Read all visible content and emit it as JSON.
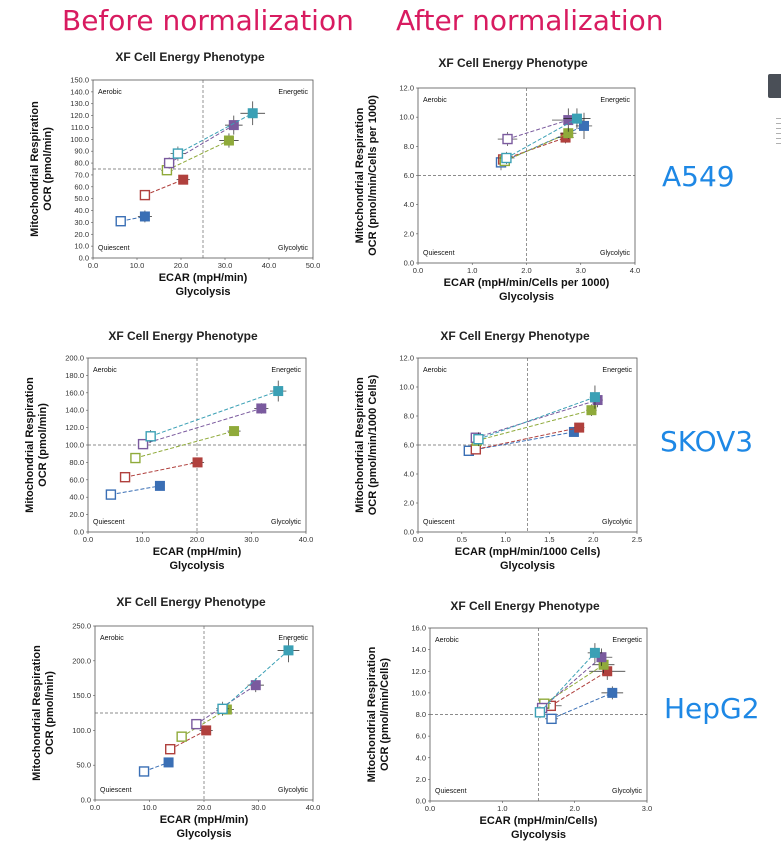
{
  "headings": {
    "before": "Before normalization",
    "after": "After normalization"
  },
  "cell_lines": [
    "A549",
    "SKOV3",
    "HepG2"
  ],
  "quadrants": {
    "aerobic": "Aerobic",
    "energetic": "Energetic",
    "quiescent": "Quiescent",
    "glycolytic": "Glycolytic"
  },
  "colors": {
    "blue": "#3a6fb5",
    "red": "#b0403d",
    "green": "#8faa3a",
    "purple": "#7a5a9e",
    "teal": "#3ba0b5"
  },
  "chart_data": [
    {
      "type": "scatter",
      "panel": "A549-before",
      "title": "XF Cell Energy Phenotype",
      "xlabel": "ECAR (mpH/min)",
      "xlabel2": "Glycolysis",
      "ylabel": "OCR (pmol/min)",
      "ylabel2": "Mitochondrial Respiration",
      "xlim": [
        0,
        50
      ],
      "ylim": [
        0,
        150
      ],
      "xticks": [
        "0.0",
        "10.0",
        "20.0",
        "30.0",
        "40.0",
        "50.0"
      ],
      "yticks": [
        "0.0",
        "10.0",
        "20.0",
        "30.0",
        "40.0",
        "50.0",
        "60.0",
        "70.0",
        "80.0",
        "90.0",
        "100.0",
        "110.0",
        "120.0",
        "130.0",
        "140.0",
        "150.0"
      ],
      "divider": [
        25,
        75
      ],
      "series": [
        {
          "color": "blue",
          "open": [
            6.3,
            31
          ],
          "filled": [
            11.8,
            35
          ],
          "ex": 1.6,
          "ey": 5
        },
        {
          "color": "red",
          "open": [
            11.8,
            53
          ],
          "filled": [
            20.5,
            66
          ],
          "ex": 1.5,
          "ey": 4
        },
        {
          "color": "green",
          "open": [
            16.8,
            74
          ],
          "filled": [
            30.9,
            99
          ],
          "ex": 2.2,
          "ey": 6
        },
        {
          "color": "purple",
          "open": [
            17.3,
            80
          ],
          "filled": [
            32.0,
            112
          ],
          "ex": 2.0,
          "ey": 8
        },
        {
          "color": "teal",
          "open": [
            19.3,
            88
          ],
          "filled": [
            36.3,
            122
          ],
          "ex": 2.8,
          "ey": 10
        }
      ]
    },
    {
      "type": "scatter",
      "panel": "A549-after",
      "title": "XF Cell Energy Phenotype",
      "xlabel": "ECAR (mpH/min/Cells per 1000)",
      "xlabel2": "Glycolysis",
      "ylabel": "OCR (pmol/min/Cells per 1000)",
      "ylabel2": "Mitochondrial Respiration",
      "xlim": [
        0,
        4
      ],
      "ylim": [
        0,
        12
      ],
      "xticks": [
        "0.0",
        "1.0",
        "2.0",
        "3.0",
        "4.0"
      ],
      "yticks": [
        "0.0",
        "2.0",
        "4.0",
        "6.0",
        "8.0",
        "10.0",
        "12.0"
      ],
      "divider": [
        2,
        6
      ],
      "series": [
        {
          "color": "blue",
          "open": [
            1.53,
            6.9
          ],
          "filled": [
            3.06,
            9.4
          ],
          "ex": 0.15,
          "ey": 0.9
        },
        {
          "color": "red",
          "open": [
            1.57,
            7.1
          ],
          "filled": [
            2.72,
            8.6
          ],
          "ex": 0.15,
          "ey": 0.4
        },
        {
          "color": "green",
          "open": [
            1.6,
            7.0
          ],
          "filled": [
            2.77,
            8.9
          ],
          "ex": 0.15,
          "ey": 0.4
        },
        {
          "color": "purple",
          "open": [
            1.65,
            8.5
          ],
          "filled": [
            2.77,
            9.8
          ],
          "ex": 0.3,
          "ey": 0.8
        },
        {
          "color": "teal",
          "open": [
            1.63,
            7.2
          ],
          "filled": [
            2.93,
            9.9
          ],
          "ex": 0.25,
          "ey": 0.7
        }
      ]
    },
    {
      "type": "scatter",
      "panel": "SKOV3-before",
      "title": "XF Cell Energy Phenotype",
      "xlabel": "ECAR (mpH/min)",
      "xlabel2": "Glycolysis",
      "ylabel": "OCR (pmol/min)",
      "ylabel2": "Mitochondrial Respiration",
      "xlim": [
        0,
        40
      ],
      "ylim": [
        0,
        200
      ],
      "xticks": [
        "0.0",
        "10.0",
        "20.0",
        "30.0",
        "40.0"
      ],
      "yticks": [
        "0.0",
        "20.0",
        "40.0",
        "60.0",
        "80.0",
        "100.0",
        "120.0",
        "140.0",
        "160.0",
        "180.0",
        "200.0"
      ],
      "divider": [
        20,
        100
      ],
      "series": [
        {
          "color": "blue",
          "open": [
            4.2,
            43
          ],
          "filled": [
            13.2,
            53
          ],
          "ex": 0.8,
          "ey": 3
        },
        {
          "color": "red",
          "open": [
            6.8,
            63
          ],
          "filled": [
            20.1,
            80
          ],
          "ex": 1.2,
          "ey": 4
        },
        {
          "color": "green",
          "open": [
            8.7,
            85
          ],
          "filled": [
            26.8,
            116
          ],
          "ex": 1.2,
          "ey": 5
        },
        {
          "color": "purple",
          "open": [
            10.1,
            101
          ],
          "filled": [
            31.8,
            142
          ],
          "ex": 1.3,
          "ey": 6
        },
        {
          "color": "teal",
          "open": [
            11.5,
            110
          ],
          "filled": [
            34.9,
            162
          ],
          "ex": 1.5,
          "ey": 12
        }
      ]
    },
    {
      "type": "scatter",
      "panel": "SKOV3-after",
      "title": "XF Cell Energy Phenotype",
      "xlabel": "ECAR (mpH/min/1000 Cells)",
      "xlabel2": "Glycolysis",
      "ylabel": "OCR (pmol/min/1000 Cells)",
      "ylabel2": "Mitochondrial Respiration",
      "xlim": [
        0,
        2.5
      ],
      "ylim": [
        0,
        12
      ],
      "xticks": [
        "0.0",
        "0.5",
        "1.0",
        "1.5",
        "2.0",
        "2.5"
      ],
      "yticks": [
        "0.0",
        "2.0",
        "4.0",
        "6.0",
        "8.0",
        "10.0",
        "12.0"
      ],
      "divider": [
        1.25,
        6
      ],
      "series": [
        {
          "color": "blue",
          "open": [
            0.58,
            5.6
          ],
          "filled": [
            1.78,
            6.9
          ],
          "ex": 0.05,
          "ey": 0.3
        },
        {
          "color": "red",
          "open": [
            0.66,
            5.7
          ],
          "filled": [
            1.84,
            7.2
          ],
          "ex": 0.06,
          "ey": 0.3
        },
        {
          "color": "green",
          "open": [
            0.67,
            6.3
          ],
          "filled": [
            1.98,
            8.4
          ],
          "ex": 0.06,
          "ey": 0.4
        },
        {
          "color": "purple",
          "open": [
            0.66,
            6.5
          ],
          "filled": [
            2.05,
            9.1
          ],
          "ex": 0.06,
          "ey": 0.5
        },
        {
          "color": "teal",
          "open": [
            0.69,
            6.4
          ],
          "filled": [
            2.02,
            9.3
          ],
          "ex": 0.06,
          "ey": 0.8
        }
      ]
    },
    {
      "type": "scatter",
      "panel": "HepG2-before",
      "title": "XF Cell Energy Phenotype",
      "xlabel": "ECAR (mpH/min)",
      "xlabel2": "Glycolysis",
      "ylabel": "OCR (pmol/min)",
      "ylabel2": "Mitochondrial Respiration",
      "xlim": [
        0,
        40
      ],
      "ylim": [
        0,
        250
      ],
      "xticks": [
        "0.0",
        "10.0",
        "20.0",
        "30.0",
        "40.0"
      ],
      "yticks": [
        "0.0",
        "50.0",
        "100.0",
        "150.0",
        "200.0",
        "250.0"
      ],
      "divider": [
        20,
        125
      ],
      "series": [
        {
          "color": "blue",
          "open": [
            9.0,
            41
          ],
          "filled": [
            13.5,
            54
          ],
          "ex": 0.8,
          "ey": 4
        },
        {
          "color": "red",
          "open": [
            13.8,
            73
          ],
          "filled": [
            20.4,
            100
          ],
          "ex": 1.2,
          "ey": 5
        },
        {
          "color": "green",
          "open": [
            15.9,
            91
          ],
          "filled": [
            24.2,
            130
          ],
          "ex": 1.3,
          "ey": 6
        },
        {
          "color": "purple",
          "open": [
            18.6,
            109
          ],
          "filled": [
            29.5,
            165
          ],
          "ex": 1.5,
          "ey": 10
        },
        {
          "color": "teal",
          "open": [
            23.4,
            131
          ],
          "filled": [
            35.5,
            215
          ],
          "ex": 2.0,
          "ey": 17
        }
      ]
    },
    {
      "type": "scatter",
      "panel": "HepG2-after",
      "title": "XF Cell Energy Phenotype",
      "xlabel": "ECAR (mpH/min/Cells)",
      "xlabel2": "Glycolysis",
      "ylabel": "OCR (pmol/min/Cells)",
      "ylabel2": "Mitochondrial Respiration",
      "xlim": [
        0,
        3
      ],
      "ylim": [
        0,
        16
      ],
      "xticks": [
        "0.0",
        "1.0",
        "2.0",
        "3.0"
      ],
      "yticks": [
        "0.0",
        "2.0",
        "4.0",
        "6.0",
        "8.0",
        "10.0",
        "12.0",
        "14.0",
        "16.0"
      ],
      "divider": [
        1.5,
        8
      ],
      "series": [
        {
          "color": "blue",
          "open": [
            1.68,
            7.6
          ],
          "filled": [
            2.52,
            10.0
          ],
          "ex": 0.15,
          "ey": 0.6
        },
        {
          "color": "red",
          "open": [
            1.67,
            8.8
          ],
          "filled": [
            2.45,
            12.0
          ],
          "ex": 0.25,
          "ey": 0.8
        },
        {
          "color": "green",
          "open": [
            1.58,
            9.0
          ],
          "filled": [
            2.4,
            12.6
          ],
          "ex": 0.15,
          "ey": 0.8
        },
        {
          "color": "purple",
          "open": [
            1.55,
            8.6
          ],
          "filled": [
            2.37,
            13.3
          ],
          "ex": 0.15,
          "ey": 0.8
        },
        {
          "color": "teal",
          "open": [
            1.52,
            8.2
          ],
          "filled": [
            2.28,
            13.7
          ],
          "ex": 0.1,
          "ey": 0.9
        }
      ]
    }
  ]
}
